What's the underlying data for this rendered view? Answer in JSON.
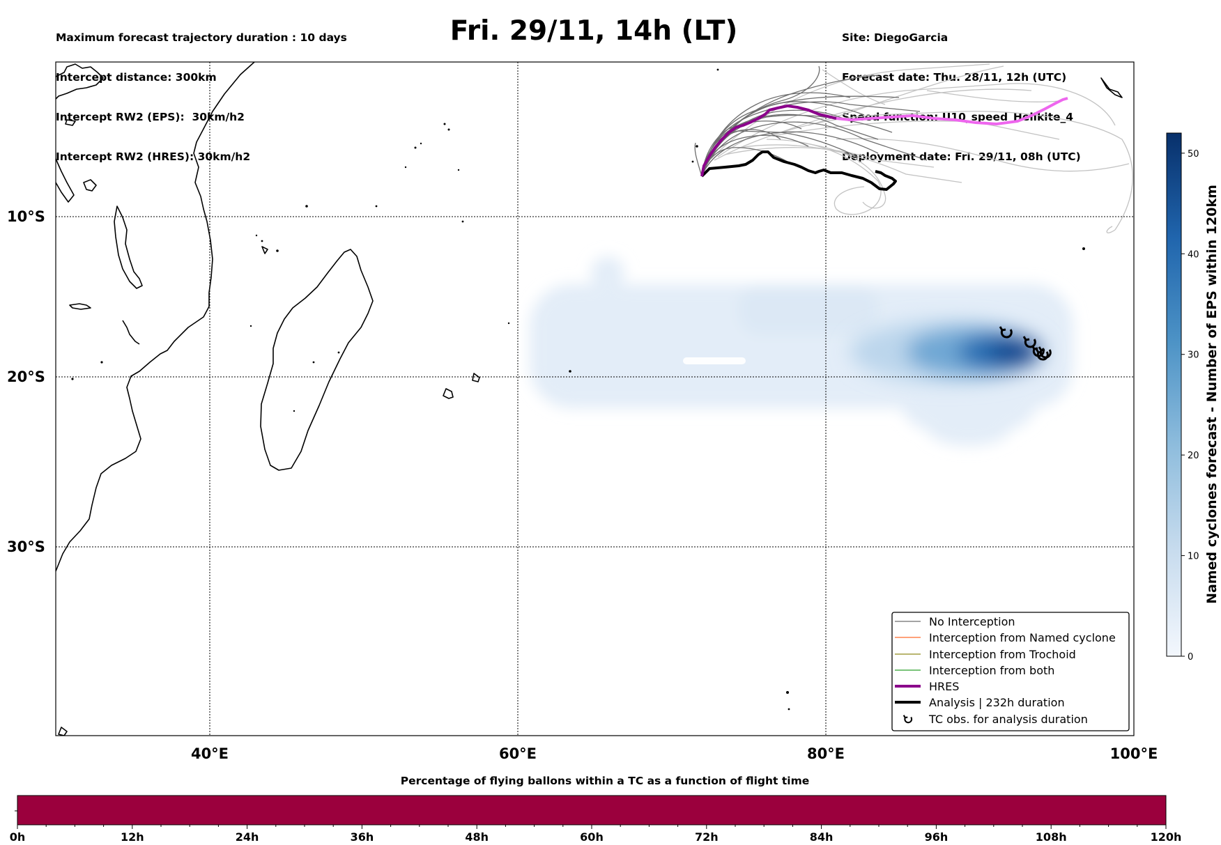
{
  "header": {
    "left_lines": [
      "Maximum forecast trajectory duration : 10 days",
      "Intercept distance: 300km",
      "Intercept RW2 (EPS):  30km/h2",
      "Intercept RW2 (HRES): 30km/h2"
    ],
    "title": "Fri. 29/11, 14h (LT)",
    "right_lines": [
      "Site: DiegoGarcia",
      "Forecast date: Thu. 28/11, 12h (UTC)",
      "Speed function: U10_speed_Helikite_4",
      "Deployment date: Fri. 29/11, 08h (UTC)"
    ]
  },
  "map": {
    "lat_labels": [
      "10°S",
      "20°S",
      "30°S"
    ],
    "lon_labels": [
      "40°E",
      "60°E",
      "80°E",
      "100°E"
    ],
    "colors": {
      "no_interception": "#6e6e6e",
      "ensemble_faint": "#c2c2c2",
      "hres_first": "#8b008b",
      "hres_second": "#ee66ee",
      "analysis": "#000000",
      "density_light": "#e3edf8",
      "density_dark": "#083a7a"
    }
  },
  "legend": {
    "items": [
      {
        "label": "No Interception",
        "color": "#6e6e6e",
        "style": "thin"
      },
      {
        "label": "Interception from Named cyclone",
        "color": "#ff6a2a",
        "style": "thin"
      },
      {
        "label": "Interception from Trochoid",
        "color": "#8f8a1a",
        "style": "thin"
      },
      {
        "label": "Interception from both",
        "color": "#2aa02a",
        "style": "thin"
      },
      {
        "label": "HRES",
        "color": "#8b008b",
        "style": "thick"
      },
      {
        "label": "Analysis | 232h duration",
        "color": "#000000",
        "style": "thick"
      },
      {
        "label": "TC obs. for analysis duration",
        "color": "#000000",
        "style": "symbol",
        "icon": "tc-symbol-icon"
      }
    ]
  },
  "colorbar": {
    "label": "Named cyclones forecast - Number of EPS within 120km",
    "ticks": [
      "0",
      "10",
      "20",
      "30",
      "40",
      "50"
    ],
    "range": [
      0,
      52
    ]
  },
  "percentage_bar": {
    "title": "Percentage of flying ballons within a TC as a function of flight time",
    "ticks": [
      "0h",
      "12h",
      "24h",
      "36h",
      "48h",
      "60h",
      "72h",
      "84h",
      "96h",
      "108h",
      "120h"
    ],
    "fill_color": "#9b003d"
  }
}
